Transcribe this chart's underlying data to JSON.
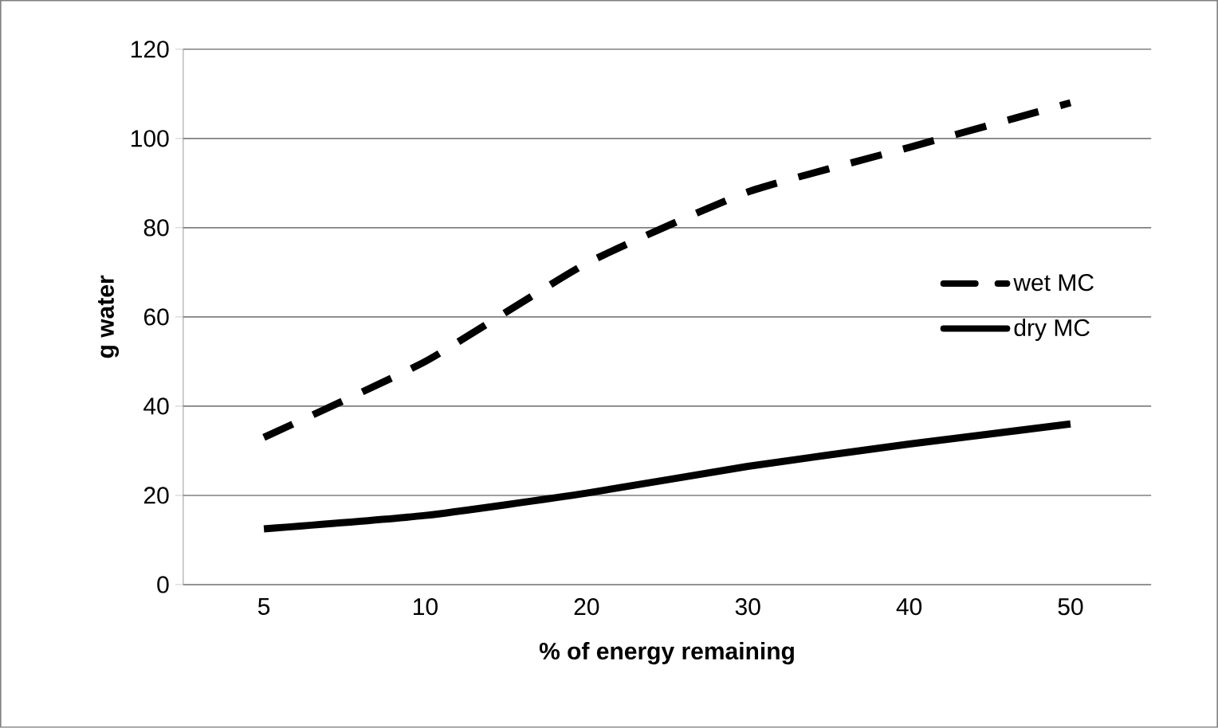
{
  "chart_data": {
    "type": "line",
    "xlabel": "% of energy remaining",
    "ylabel": "g water",
    "categories": [
      "5",
      "10",
      "20",
      "30",
      "40",
      "50"
    ],
    "series": [
      {
        "name": "wet MC",
        "color": "#000000",
        "line_style": "dashed",
        "values": [
          33,
          50,
          72,
          88,
          98,
          108
        ]
      },
      {
        "name": "dry MC",
        "color": "#000000",
        "line_style": "solid",
        "values": [
          12.5,
          15.5,
          20.5,
          26.5,
          31.5,
          36
        ]
      }
    ],
    "ylim": [
      0,
      120
    ],
    "yticks": [
      0,
      20,
      40,
      60,
      80,
      100,
      120
    ],
    "grid": "y",
    "legend": "right"
  }
}
